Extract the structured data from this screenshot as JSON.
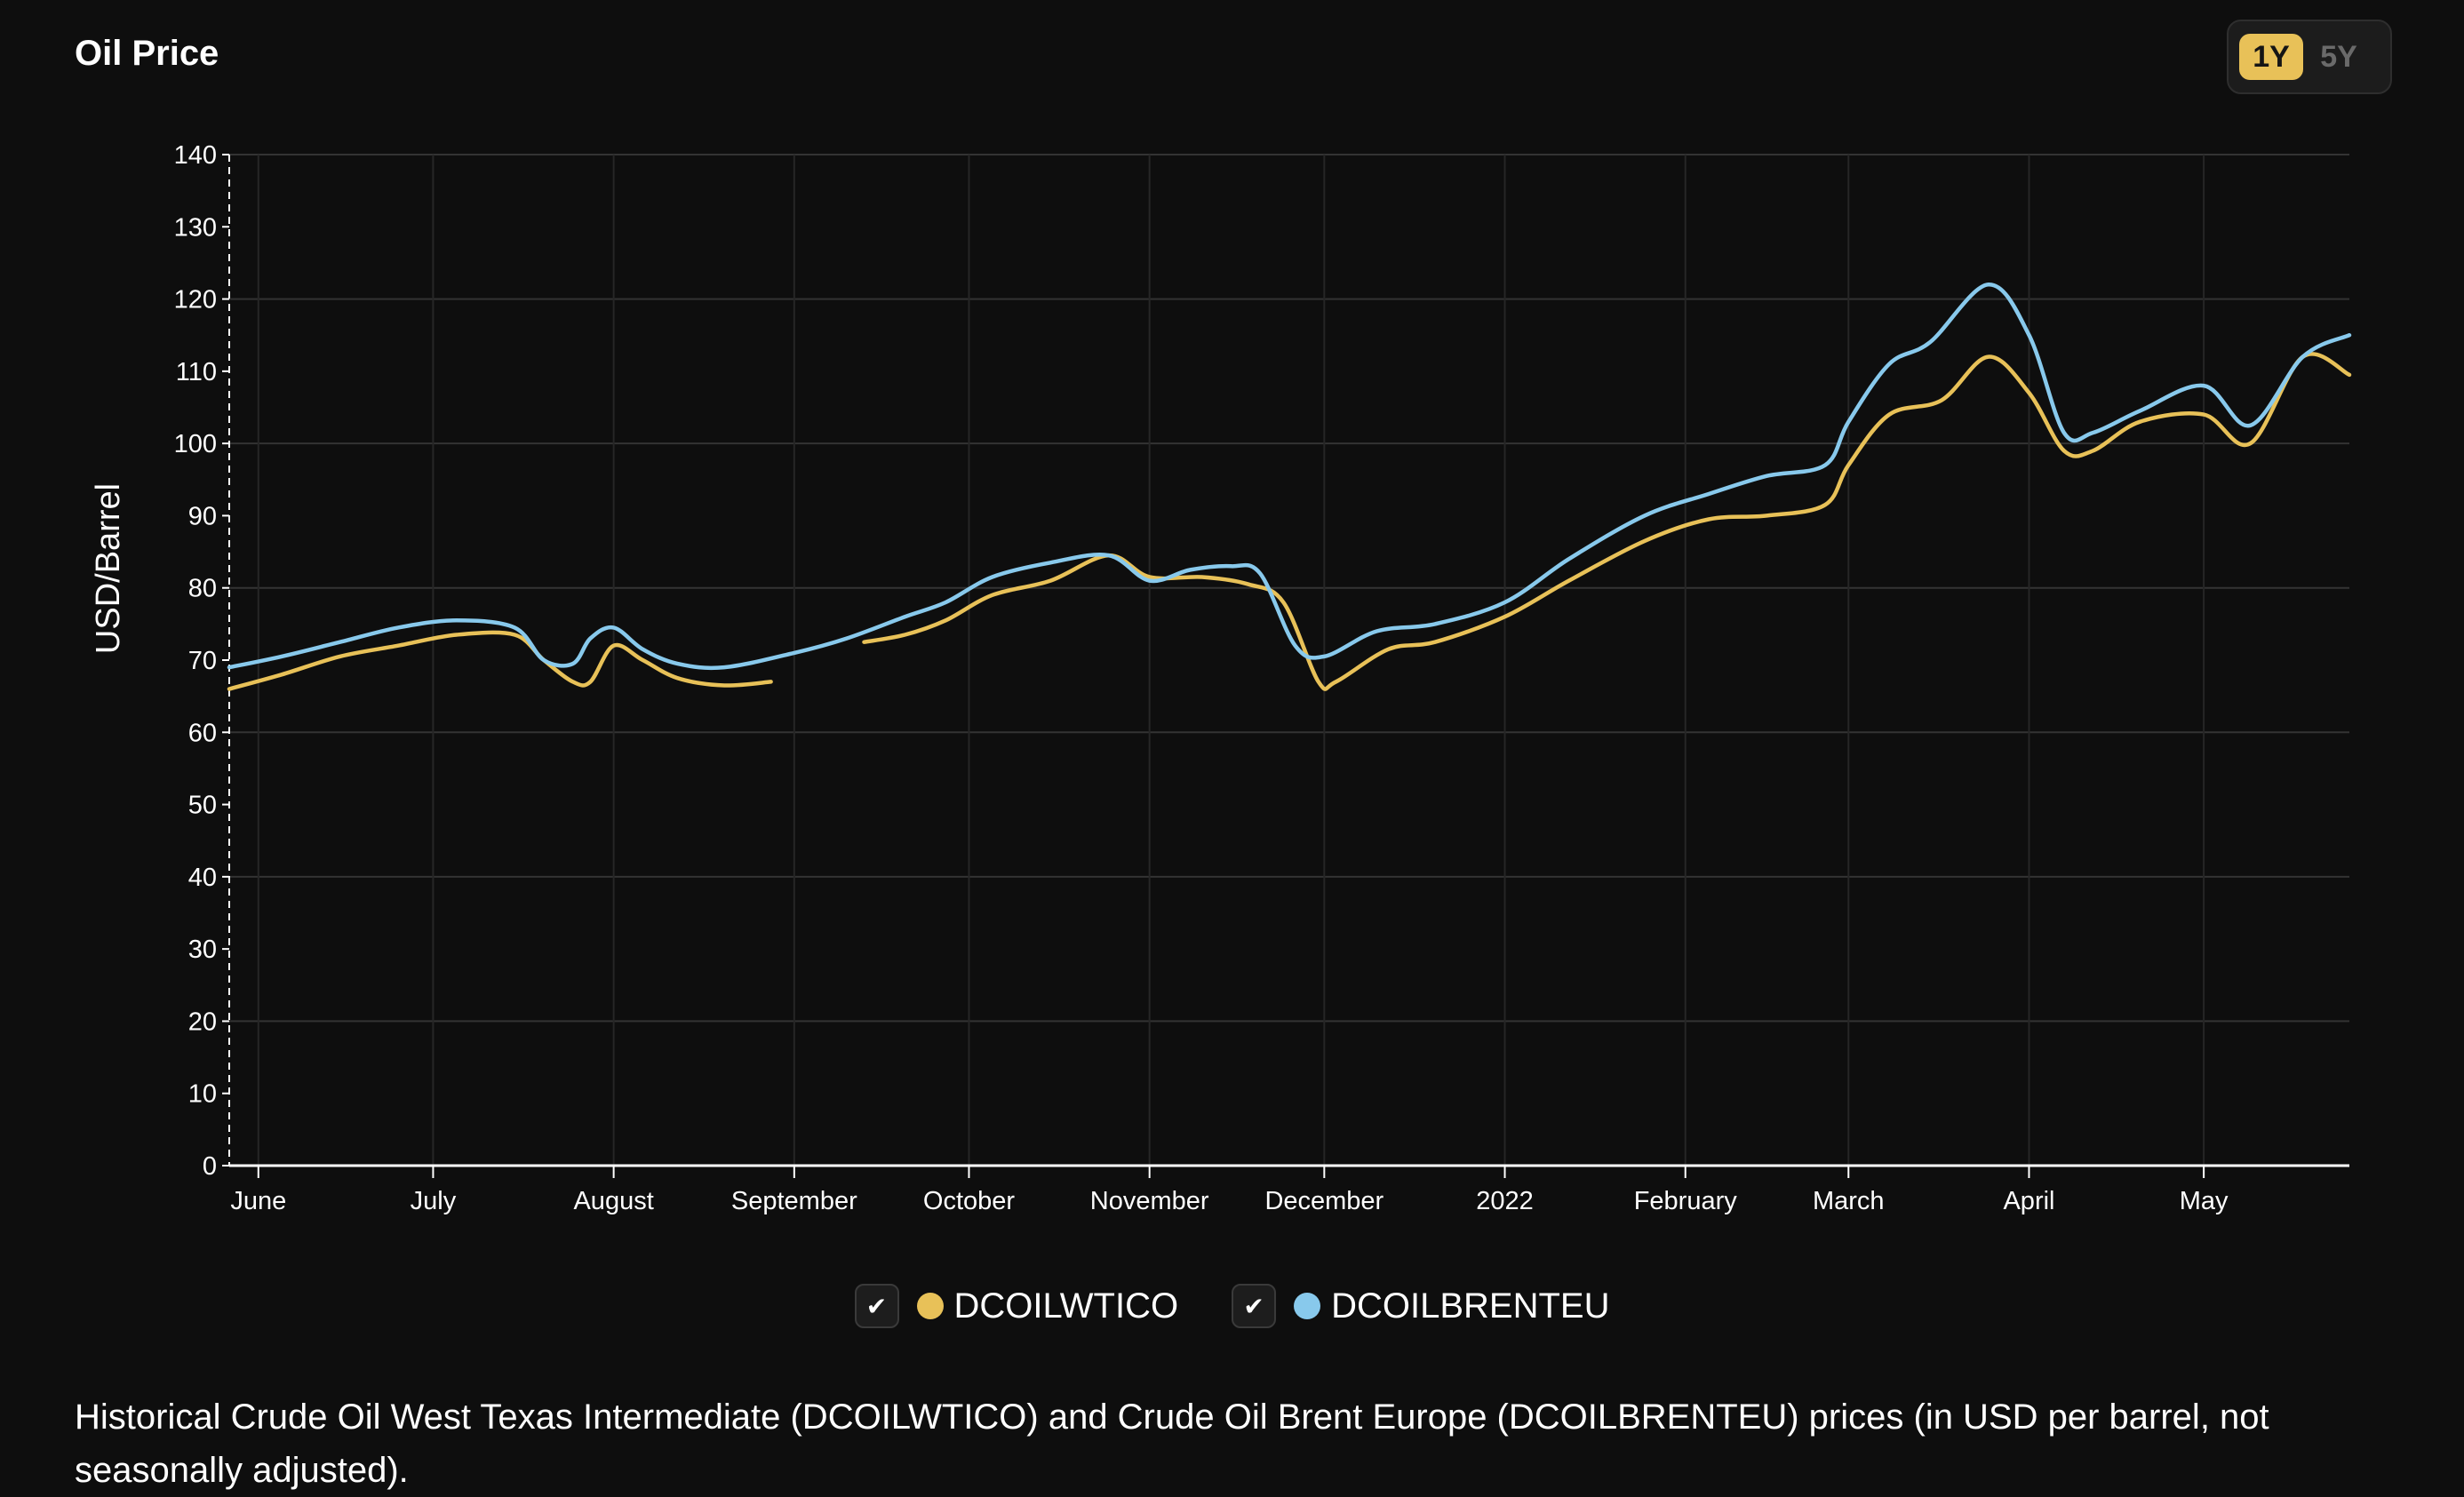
{
  "header": {
    "title": "Oil Price",
    "range_options": [
      {
        "label": "1Y",
        "active": true
      },
      {
        "label": "5Y",
        "active": false
      }
    ]
  },
  "colors": {
    "background": "#0e0e0e",
    "accent": "#e8c158",
    "wti": "#e8c158",
    "brent": "#88c9ec",
    "grid": "#333333"
  },
  "legend": [
    {
      "label": "DCOILWTICO",
      "color": "#e8c158",
      "checked": true,
      "icon": "check-icon"
    },
    {
      "label": "DCOILBRENTEU",
      "color": "#88c9ec",
      "checked": true,
      "icon": "check-icon"
    }
  ],
  "caption": "Historical Crude Oil West Texas Intermediate (DCOILWTICO) and Crude Oil Brent Europe (DCOILBRENTEU) prices (in USD per barrel, not seasonally adjusted).",
  "chart_data": {
    "type": "line",
    "title": "Oil Price",
    "xlabel": "",
    "ylabel": "USD/Barrel",
    "ylim": [
      0,
      140
    ],
    "yticks": [
      0,
      10,
      20,
      30,
      40,
      50,
      60,
      70,
      80,
      90,
      100,
      110,
      120,
      130,
      140
    ],
    "xlim": [
      "2021-05-27",
      "2022-05-26"
    ],
    "xticks": [
      {
        "label": "June",
        "date": "2021-06-01"
      },
      {
        "label": "July",
        "date": "2021-07-01"
      },
      {
        "label": "August",
        "date": "2021-08-01"
      },
      {
        "label": "September",
        "date": "2021-09-01"
      },
      {
        "label": "October",
        "date": "2021-10-01"
      },
      {
        "label": "November",
        "date": "2021-11-01"
      },
      {
        "label": "December",
        "date": "2021-12-01"
      },
      {
        "label": "2022",
        "date": "2022-01-01"
      },
      {
        "label": "February",
        "date": "2022-02-01"
      },
      {
        "label": "March",
        "date": "2022-03-01"
      },
      {
        "label": "April",
        "date": "2022-04-01"
      },
      {
        "label": "May",
        "date": "2022-05-01"
      }
    ],
    "grid": true,
    "legend_position": "bottom-center",
    "series": [
      {
        "name": "DCOILWTICO",
        "color": "#e8c158",
        "segments": [
          [
            [
              "2021-05-27",
              66
            ],
            [
              "2021-06-05",
              68
            ],
            [
              "2021-06-15",
              70.5
            ],
            [
              "2021-06-25",
              72
            ],
            [
              "2021-07-05",
              73.5
            ],
            [
              "2021-07-15",
              73.5
            ],
            [
              "2021-07-20",
              70
            ],
            [
              "2021-07-25",
              67
            ],
            [
              "2021-07-28",
              67
            ],
            [
              "2021-08-01",
              72
            ],
            [
              "2021-08-06",
              70
            ],
            [
              "2021-08-12",
              67.5
            ],
            [
              "2021-08-20",
              66.5
            ],
            [
              "2021-08-28",
              67
            ]
          ],
          [
            [
              "2021-09-13",
              72.5
            ],
            [
              "2021-09-20",
              73.5
            ],
            [
              "2021-09-27",
              75.5
            ],
            [
              "2021-10-05",
              79
            ],
            [
              "2021-10-15",
              81
            ],
            [
              "2021-10-25",
              84.5
            ],
            [
              "2021-11-01",
              81.5
            ],
            [
              "2021-11-10",
              81.5
            ],
            [
              "2021-11-18",
              80.5
            ],
            [
              "2021-11-24",
              78
            ],
            [
              "2021-11-30",
              67
            ],
            [
              "2021-12-03",
              67
            ],
            [
              "2021-12-12",
              71.5
            ],
            [
              "2021-12-20",
              72.5
            ],
            [
              "2022-01-01",
              76
            ],
            [
              "2022-01-12",
              81
            ],
            [
              "2022-01-25",
              86.5
            ],
            [
              "2022-02-05",
              89.5
            ],
            [
              "2022-02-15",
              90
            ],
            [
              "2022-02-25",
              91.5
            ],
            [
              "2022-03-01",
              97
            ],
            [
              "2022-03-08",
              104
            ],
            [
              "2022-03-17",
              106
            ],
            [
              "2022-03-25",
              112
            ],
            [
              "2022-04-01",
              107
            ],
            [
              "2022-04-07",
              99
            ],
            [
              "2022-04-12",
              99
            ],
            [
              "2022-04-20",
              103
            ],
            [
              "2022-05-01",
              104
            ],
            [
              "2022-05-09",
              100
            ],
            [
              "2022-05-18",
              112
            ],
            [
              "2022-05-26",
              109.5
            ]
          ]
        ]
      },
      {
        "name": "DCOILBRENTEU",
        "color": "#88c9ec",
        "segments": [
          [
            [
              "2021-05-27",
              69
            ],
            [
              "2021-06-05",
              70.5
            ],
            [
              "2021-06-15",
              72.5
            ],
            [
              "2021-06-25",
              74.5
            ],
            [
              "2021-07-05",
              75.5
            ],
            [
              "2021-07-15",
              74.5
            ],
            [
              "2021-07-20",
              70
            ],
            [
              "2021-07-25",
              69.5
            ],
            [
              "2021-07-28",
              73
            ],
            [
              "2021-08-01",
              74.5
            ],
            [
              "2021-08-06",
              71.5
            ],
            [
              "2021-08-12",
              69.5
            ],
            [
              "2021-08-20",
              69
            ],
            [
              "2021-09-01",
              71
            ],
            [
              "2021-09-10",
              73
            ],
            [
              "2021-09-20",
              76
            ],
            [
              "2021-09-27",
              78
            ],
            [
              "2021-10-05",
              81.5
            ],
            [
              "2021-10-15",
              83.5
            ],
            [
              "2021-10-25",
              84.5
            ],
            [
              "2021-11-01",
              81
            ],
            [
              "2021-11-08",
              82.5
            ],
            [
              "2021-11-15",
              83
            ],
            [
              "2021-11-20",
              82
            ],
            [
              "2021-11-26",
              72
            ],
            [
              "2021-12-01",
              70.5
            ],
            [
              "2021-12-10",
              74
            ],
            [
              "2021-12-20",
              75
            ],
            [
              "2022-01-01",
              78
            ],
            [
              "2022-01-12",
              84
            ],
            [
              "2022-01-25",
              90
            ],
            [
              "2022-02-05",
              93
            ],
            [
              "2022-02-15",
              95.5
            ],
            [
              "2022-02-25",
              97
            ],
            [
              "2022-03-01",
              103
            ],
            [
              "2022-03-08",
              111
            ],
            [
              "2022-03-15",
              114
            ],
            [
              "2022-03-25",
              122
            ],
            [
              "2022-04-01",
              115
            ],
            [
              "2022-04-07",
              101.5
            ],
            [
              "2022-04-12",
              101.5
            ],
            [
              "2022-04-20",
              104.5
            ],
            [
              "2022-05-01",
              108
            ],
            [
              "2022-05-09",
              102.5
            ],
            [
              "2022-05-18",
              112
            ],
            [
              "2022-05-26",
              115
            ]
          ]
        ]
      }
    ]
  }
}
